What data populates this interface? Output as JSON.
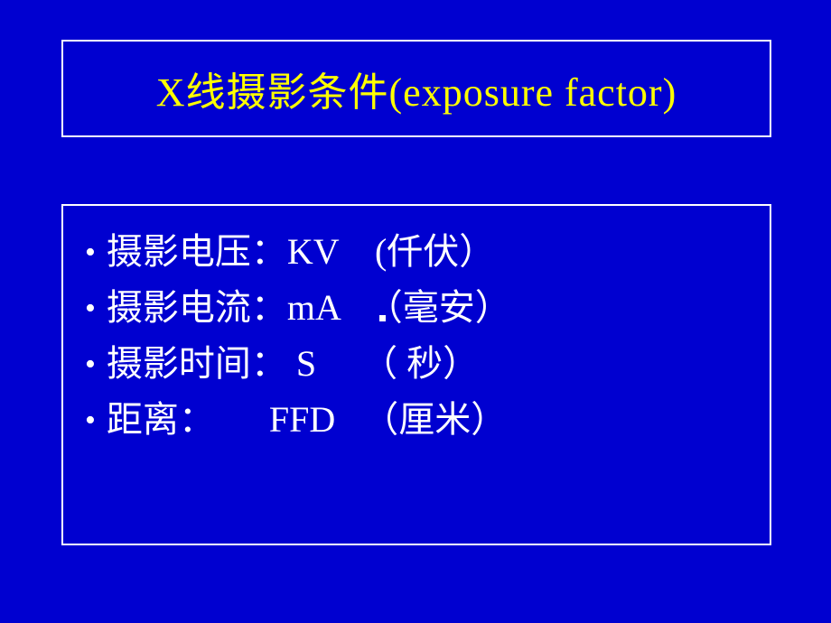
{
  "slide": {
    "background_color": "#0000d0",
    "title_box": {
      "border_color": "#ffffff",
      "border_width": 2
    },
    "content_box": {
      "border_color": "#ffffff",
      "border_width": 2
    },
    "title": {
      "text": "X线摄影条件(exposure factor)",
      "color": "#ffff00",
      "fontsize": 44,
      "font_family": "KaiTi"
    },
    "bullets": [
      {
        "text": "摄影电压：KV    (仟伏）"
      },
      {
        "text": "摄影电流：mA   （毫安）"
      },
      {
        "text": "摄影时间： S     （ 秒）"
      },
      {
        "text": "距离：      FFD   （厘米）"
      }
    ],
    "bullet_style": {
      "color": "#ffffff",
      "fontsize": 40,
      "font_family": "SimSun",
      "marker": "•"
    }
  }
}
